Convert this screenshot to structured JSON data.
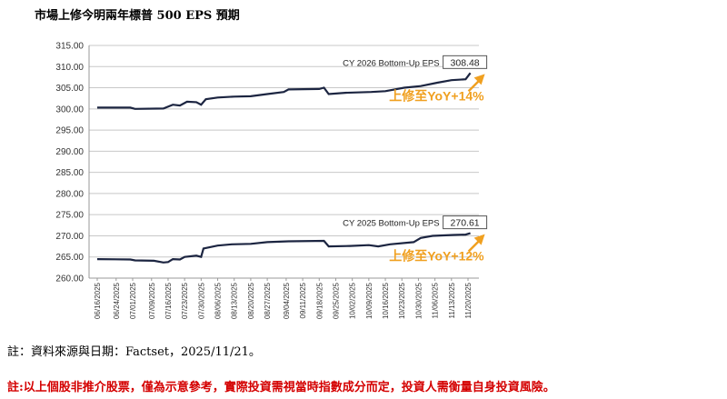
{
  "title": "市場上修今明兩年標普 500 EPS 預期",
  "note_source": "註：資料來源與日期：Factset，2025/11/21。",
  "note_disclaimer": "註:以上個股非推介股票，僅為示意參考，實際投資需視當時指數成分而定，投資人需衡量自身投資風險。",
  "chart_data": {
    "type": "line",
    "ylim": [
      260,
      315
    ],
    "yticks": [
      "315.00",
      "310.00",
      "305.00",
      "300.00",
      "295.00",
      "290.00",
      "285.00",
      "280.00",
      "275.00",
      "270.00",
      "265.00",
      "260.00"
    ],
    "xticks": [
      "06/16/2025",
      "06/24/2025",
      "07/01/2025",
      "07/09/2025",
      "07/16/2025",
      "07/23/2025",
      "07/30/2025",
      "08/06/2025",
      "08/13/2025",
      "08/20/2025",
      "08/27/2025",
      "09/04/2025",
      "09/11/2025",
      "09/18/2025",
      "09/25/2025",
      "10/02/2025",
      "10/09/2025",
      "10/16/2025",
      "10/23/2025",
      "10/30/2025",
      "11/06/2025",
      "11/13/2025",
      "11/20/2025"
    ],
    "colors": {
      "line": "#1c2541",
      "annotation": "#f0a020",
      "grid": "#c8c8c8"
    },
    "series": [
      {
        "name": "CY 2026 Bottom-Up EPS",
        "end_label": "308.48",
        "annotation": "上修至YoY+14%",
        "points": [
          [
            "2025-06-16",
            300.3
          ],
          [
            "2025-06-30",
            300.3
          ],
          [
            "2025-07-02",
            300.0
          ],
          [
            "2025-07-14",
            300.1
          ],
          [
            "2025-07-18",
            301.0
          ],
          [
            "2025-07-21",
            300.8
          ],
          [
            "2025-07-24",
            301.7
          ],
          [
            "2025-07-28",
            301.6
          ],
          [
            "2025-07-30",
            301.0
          ],
          [
            "2025-08-01",
            302.3
          ],
          [
            "2025-08-06",
            302.7
          ],
          [
            "2025-08-13",
            302.9
          ],
          [
            "2025-08-20",
            303.0
          ],
          [
            "2025-08-27",
            303.5
          ],
          [
            "2025-09-03",
            304.0
          ],
          [
            "2025-09-05",
            304.6
          ],
          [
            "2025-09-18",
            304.7
          ],
          [
            "2025-09-20",
            305.0
          ],
          [
            "2025-09-22",
            303.5
          ],
          [
            "2025-09-29",
            303.8
          ],
          [
            "2025-10-10",
            304.0
          ],
          [
            "2025-10-16",
            304.2
          ],
          [
            "2025-10-24",
            305.0
          ],
          [
            "2025-10-31",
            305.4
          ],
          [
            "2025-11-07",
            306.2
          ],
          [
            "2025-11-13",
            306.8
          ],
          [
            "2025-11-19",
            307.0
          ],
          [
            "2025-11-21",
            308.48
          ]
        ]
      },
      {
        "name": "CY 2025 Bottom-Up EPS",
        "end_label": "270.61",
        "annotation": "上修至YoY+12%",
        "points": [
          [
            "2025-06-16",
            264.5
          ],
          [
            "2025-06-30",
            264.4
          ],
          [
            "2025-07-02",
            264.2
          ],
          [
            "2025-07-10",
            264.1
          ],
          [
            "2025-07-14",
            263.7
          ],
          [
            "2025-07-16",
            263.8
          ],
          [
            "2025-07-18",
            264.5
          ],
          [
            "2025-07-21",
            264.4
          ],
          [
            "2025-07-23",
            265.0
          ],
          [
            "2025-07-28",
            265.3
          ],
          [
            "2025-07-30",
            265.0
          ],
          [
            "2025-07-31",
            267.0
          ],
          [
            "2025-08-06",
            267.7
          ],
          [
            "2025-08-12",
            268.0
          ],
          [
            "2025-08-20",
            268.1
          ],
          [
            "2025-08-27",
            268.5
          ],
          [
            "2025-09-05",
            268.7
          ],
          [
            "2025-09-20",
            268.8
          ],
          [
            "2025-09-22",
            267.5
          ],
          [
            "2025-10-01",
            267.6
          ],
          [
            "2025-10-09",
            267.8
          ],
          [
            "2025-10-13",
            267.5
          ],
          [
            "2025-10-18",
            268.0
          ],
          [
            "2025-10-28",
            268.5
          ],
          [
            "2025-10-31",
            269.5
          ],
          [
            "2025-11-05",
            270.0
          ],
          [
            "2025-11-14",
            270.2
          ],
          [
            "2025-11-19",
            270.3
          ],
          [
            "2025-11-21",
            270.61
          ]
        ]
      }
    ]
  }
}
